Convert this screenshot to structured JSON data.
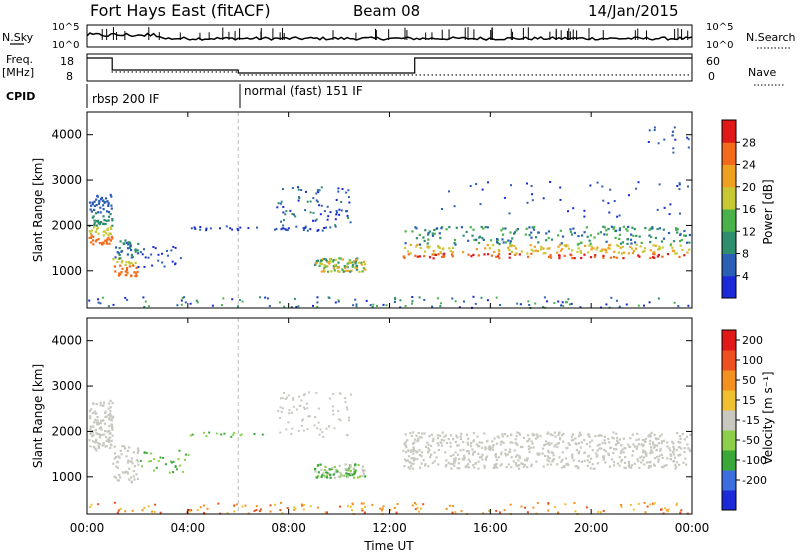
{
  "header": {
    "station": "Fort Hays East (fitACF)",
    "beam": "Beam 08",
    "date": "14/Jan/2015"
  },
  "top_panel": {
    "left_label": "N.Sky",
    "left_ticks": [
      "10^5",
      "10^0"
    ],
    "right_label": "N.Search",
    "right_ticks": [
      "10^5",
      "10^0"
    ]
  },
  "freq_panel": {
    "left_label_1": "Freq.",
    "left_label_2": "[MHz]",
    "left_ticks": [
      "18",
      "8"
    ],
    "right_label": "Nave",
    "right_ticks": [
      "60",
      "0"
    ]
  },
  "cpid": {
    "label": "CPID",
    "mode_1": "rbsp 200 IF",
    "mode_2": "normal (fast) 151 IF"
  },
  "chart_data": [
    {
      "type": "heatmap",
      "name": "power",
      "ylabel": "Slant Range [km]",
      "yticks": [
        "4000",
        "3000",
        "2000",
        "1000"
      ],
      "ylim": [
        180,
        4500
      ],
      "colorbar_label": "Power [dB]",
      "colorbar_ticks": [
        "28",
        "24",
        "20",
        "16",
        "12",
        "8",
        "4"
      ],
      "colors": [
        "#1a2ad8",
        "#2a5fb5",
        "#2f8e6d",
        "#4ab24a",
        "#c8c832",
        "#f0a020",
        "#f26a1a",
        "#e01818"
      ]
    },
    {
      "type": "heatmap",
      "name": "velocity",
      "ylabel": "Slant Range [km]",
      "yticks": [
        "4000",
        "3000",
        "2000",
        "1000"
      ],
      "ylim": [
        180,
        4500
      ],
      "colorbar_label": "Velocity [m s⁻¹]",
      "colorbar_ticks": [
        "200",
        "100",
        "50",
        "15",
        "-15",
        "-50",
        "-100",
        "-200"
      ],
      "colors": [
        "#1a2ad8",
        "#3d6ee0",
        "#3aa838",
        "#8ccf4a",
        "#c8c8c0",
        "#f0c030",
        "#f29020",
        "#ef5020",
        "#e01818"
      ]
    }
  ],
  "x_axis": {
    "label": "Time UT",
    "ticks": [
      "00:00",
      "04:00",
      "08:00",
      "12:00",
      "16:00",
      "20:00",
      "00:00"
    ]
  }
}
